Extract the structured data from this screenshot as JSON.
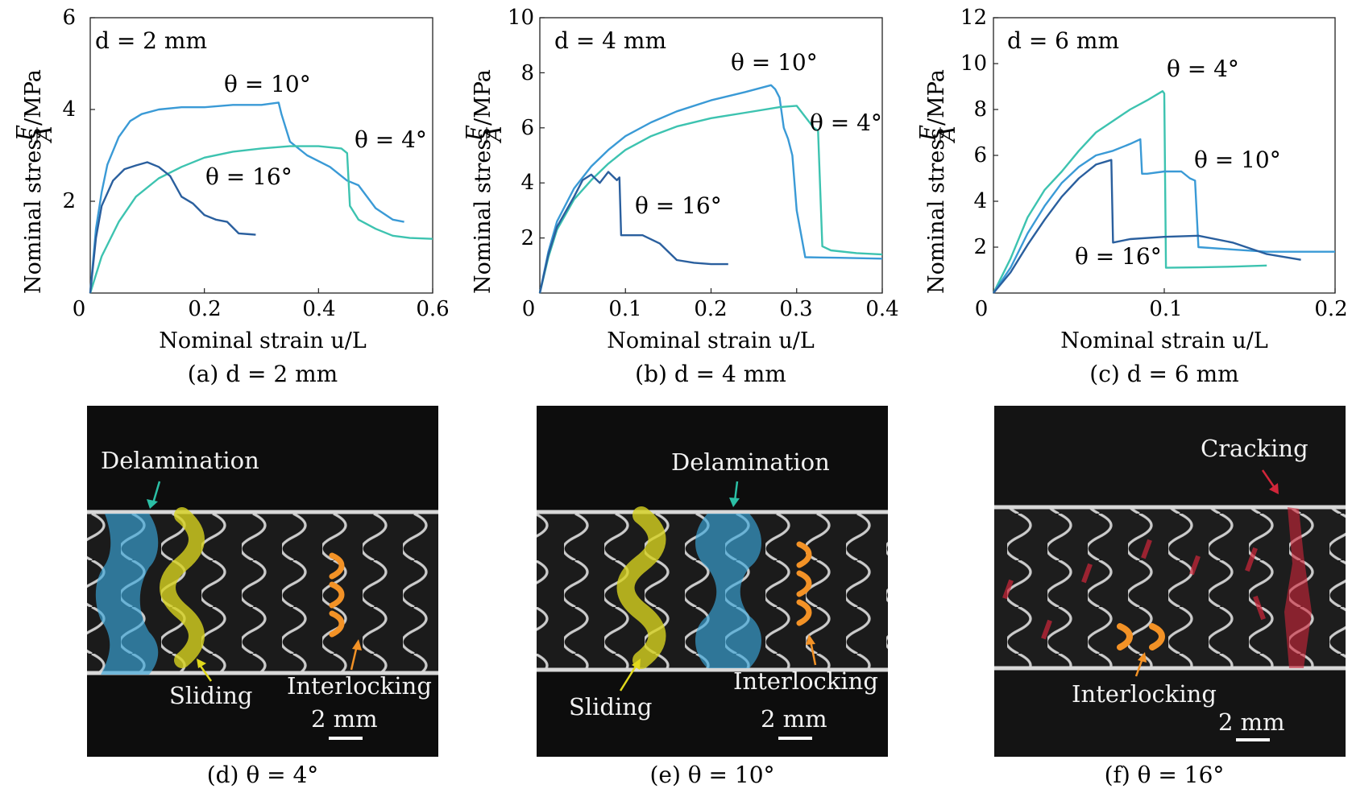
{
  "figure": {
    "y_axis_label_parts": {
      "prefix": "Nominal stress ",
      "num": "F",
      "den": "A",
      "suffix": "/MPa"
    },
    "x_axis_label": "Nominal strain u/L"
  },
  "chart_data": [
    {
      "type": "line",
      "panel": "(a)",
      "caption": "(a) d = 2 mm",
      "inset_text": "d = 2 mm",
      "xlabel": "Nominal strain u/L",
      "ylabel": "Nominal stress F/A /MPa",
      "xlim": [
        0,
        0.6
      ],
      "ylim": [
        0,
        6
      ],
      "xticks": [
        "0",
        "0.2",
        "0.4",
        "0.6"
      ],
      "yticks": [
        "2",
        "4",
        "6"
      ],
      "series": [
        {
          "name": "θ = 10°",
          "color": "#3a9ad6",
          "x": [
            0,
            0.01,
            0.02,
            0.03,
            0.05,
            0.07,
            0.09,
            0.12,
            0.16,
            0.2,
            0.25,
            0.3,
            0.33,
            0.335,
            0.35,
            0.38,
            0.42,
            0.45,
            0.47,
            0.5,
            0.53,
            0.55
          ],
          "y": [
            0,
            1.4,
            2.2,
            2.8,
            3.4,
            3.75,
            3.9,
            4.0,
            4.05,
            4.05,
            4.1,
            4.1,
            4.15,
            3.9,
            3.3,
            3.0,
            2.75,
            2.45,
            2.35,
            1.85,
            1.6,
            1.55
          ]
        },
        {
          "name": "θ = 4°",
          "color": "#3dc3b0",
          "x": [
            0,
            0.02,
            0.05,
            0.08,
            0.12,
            0.16,
            0.2,
            0.25,
            0.3,
            0.35,
            0.4,
            0.44,
            0.45,
            0.455,
            0.47,
            0.5,
            0.53,
            0.56,
            0.6
          ],
          "y": [
            0,
            0.8,
            1.55,
            2.1,
            2.5,
            2.75,
            2.95,
            3.08,
            3.15,
            3.2,
            3.2,
            3.15,
            3.05,
            1.9,
            1.6,
            1.4,
            1.25,
            1.2,
            1.18
          ]
        },
        {
          "name": "θ = 16°",
          "color": "#2a5f9e",
          "x": [
            0,
            0.01,
            0.02,
            0.04,
            0.06,
            0.08,
            0.1,
            0.12,
            0.14,
            0.16,
            0.18,
            0.2,
            0.22,
            0.24,
            0.26,
            0.28,
            0.29
          ],
          "y": [
            0,
            1.2,
            1.9,
            2.45,
            2.7,
            2.78,
            2.85,
            2.75,
            2.55,
            2.1,
            1.95,
            1.7,
            1.6,
            1.55,
            1.3,
            1.28,
            1.27
          ]
        }
      ],
      "annotations": [
        "θ = 10°",
        "θ = 4°",
        "θ = 16°"
      ]
    },
    {
      "type": "line",
      "panel": "(b)",
      "caption": "(b) d = 4 mm",
      "inset_text": "d = 4 mm",
      "xlabel": "Nominal strain u/L",
      "ylabel": "Nominal stress F/A /MPa",
      "xlim": [
        0,
        0.4
      ],
      "ylim": [
        0,
        10
      ],
      "xticks": [
        "0",
        "0.1",
        "0.2",
        "0.3",
        "0.4"
      ],
      "yticks": [
        "2",
        "4",
        "6",
        "8",
        "10"
      ],
      "series": [
        {
          "name": "θ = 10°",
          "color": "#3a9ad6",
          "x": [
            0,
            0.01,
            0.02,
            0.04,
            0.06,
            0.08,
            0.1,
            0.13,
            0.16,
            0.2,
            0.24,
            0.27,
            0.275,
            0.28,
            0.285,
            0.29,
            0.295,
            0.3,
            0.31,
            0.35,
            0.4
          ],
          "y": [
            0,
            1.5,
            2.6,
            3.8,
            4.6,
            5.2,
            5.7,
            6.2,
            6.6,
            7.0,
            7.3,
            7.55,
            7.4,
            7.1,
            6.0,
            5.6,
            5.0,
            3.0,
            1.3,
            1.28,
            1.25
          ]
        },
        {
          "name": "θ = 4°",
          "color": "#3dc3b0",
          "x": [
            0,
            0.01,
            0.02,
            0.04,
            0.06,
            0.08,
            0.1,
            0.13,
            0.16,
            0.2,
            0.24,
            0.28,
            0.3,
            0.31,
            0.32,
            0.325,
            0.33,
            0.34,
            0.37,
            0.4
          ],
          "y": [
            0,
            1.3,
            2.3,
            3.4,
            4.1,
            4.7,
            5.2,
            5.7,
            6.05,
            6.35,
            6.55,
            6.75,
            6.8,
            6.4,
            6.0,
            5.9,
            1.7,
            1.55,
            1.45,
            1.4
          ]
        },
        {
          "name": "θ = 16°",
          "color": "#2a5f9e",
          "x": [
            0,
            0.01,
            0.02,
            0.04,
            0.05,
            0.06,
            0.07,
            0.08,
            0.09,
            0.093,
            0.095,
            0.1,
            0.12,
            0.14,
            0.16,
            0.18,
            0.2,
            0.22
          ],
          "y": [
            0,
            1.4,
            2.4,
            3.5,
            4.1,
            4.3,
            4.0,
            4.4,
            4.1,
            4.2,
            2.1,
            2.1,
            2.1,
            1.8,
            1.2,
            1.1,
            1.05,
            1.05
          ]
        }
      ],
      "annotations": [
        "θ = 10°",
        "θ = 4°",
        "θ = 16°"
      ]
    },
    {
      "type": "line",
      "panel": "(c)",
      "caption": "(c) d = 6 mm",
      "inset_text": "d = 6 mm",
      "xlabel": "Nominal strain u/L",
      "ylabel": "Nominal stress F/A /MPa",
      "xlim": [
        0,
        0.2
      ],
      "ylim": [
        0,
        12
      ],
      "xticks": [
        "0",
        "0.1",
        "0.2"
      ],
      "yticks": [
        "2",
        "4",
        "6",
        "8",
        "10",
        "12"
      ],
      "series": [
        {
          "name": "θ = 4°",
          "color": "#3dc3b0",
          "x": [
            0,
            0.01,
            0.02,
            0.03,
            0.04,
            0.05,
            0.06,
            0.07,
            0.08,
            0.09,
            0.099,
            0.1,
            0.101,
            0.12,
            0.14,
            0.16
          ],
          "y": [
            0,
            1.5,
            3.3,
            4.5,
            5.3,
            6.2,
            7.0,
            7.5,
            8.0,
            8.4,
            8.8,
            8.7,
            1.1,
            1.12,
            1.15,
            1.2
          ]
        },
        {
          "name": "θ = 10°",
          "color": "#3a9ad6",
          "x": [
            0,
            0.01,
            0.02,
            0.03,
            0.04,
            0.05,
            0.06,
            0.07,
            0.08,
            0.086,
            0.087,
            0.09,
            0.1,
            0.11,
            0.115,
            0.118,
            0.12,
            0.14,
            0.16,
            0.18,
            0.2
          ],
          "y": [
            0,
            1.1,
            2.6,
            3.8,
            4.8,
            5.5,
            6.0,
            6.2,
            6.5,
            6.7,
            5.2,
            5.2,
            5.3,
            5.3,
            5.0,
            4.9,
            2.0,
            1.9,
            1.8,
            1.8,
            1.8
          ]
        },
        {
          "name": "θ = 16°",
          "color": "#2a5f9e",
          "x": [
            0,
            0.01,
            0.02,
            0.03,
            0.04,
            0.05,
            0.06,
            0.069,
            0.07,
            0.08,
            0.1,
            0.12,
            0.14,
            0.16,
            0.18
          ],
          "y": [
            0,
            0.9,
            2.1,
            3.2,
            4.2,
            5.0,
            5.6,
            5.8,
            2.2,
            2.35,
            2.45,
            2.5,
            2.2,
            1.7,
            1.45
          ]
        }
      ],
      "annotations": [
        "θ = 4°",
        "θ = 10°",
        "θ = 16°"
      ]
    }
  ],
  "photos": [
    {
      "caption": "(d) θ = 4°",
      "labels": [
        "Delamination",
        "Sliding",
        "Interlocking"
      ],
      "scale_bar": "2 mm"
    },
    {
      "caption": "(e) θ = 10°",
      "labels": [
        "Delamination",
        "Sliding",
        "Interlocking"
      ],
      "scale_bar": "2 mm"
    },
    {
      "caption": "(f) θ = 16°",
      "labels": [
        "Cracking",
        "Interlocking"
      ],
      "scale_bar": "2 mm"
    }
  ],
  "colors": {
    "theta_4": "#3dc3b0",
    "theta_10": "#3a9ad6",
    "theta_16": "#2a5f9e",
    "delamination": "#3aa7dc",
    "sliding": "#d7d21f",
    "interlocking": "#f39226",
    "cracking": "#d1263a"
  }
}
